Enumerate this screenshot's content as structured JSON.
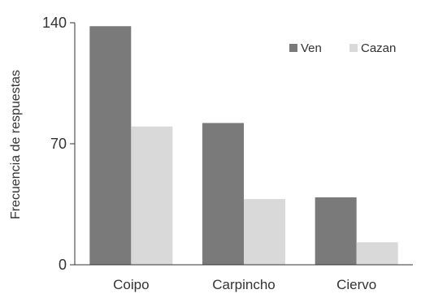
{
  "chart_data": {
    "type": "bar",
    "ylabel": "Frecuencia  de respuestas",
    "categories": [
      "Coipo",
      "Carpincho",
      "Ciervo"
    ],
    "series": [
      {
        "name": "Ven",
        "values": [
          138,
          82,
          39
        ],
        "color": "#7a7a7a"
      },
      {
        "name": "Cazan",
        "values": [
          80,
          38,
          13
        ],
        "color": "#d9d9d9"
      }
    ],
    "ylim": [
      0,
      140
    ],
    "yticks": [
      0,
      70,
      140
    ],
    "grid": false,
    "legend_position": "top-right"
  }
}
